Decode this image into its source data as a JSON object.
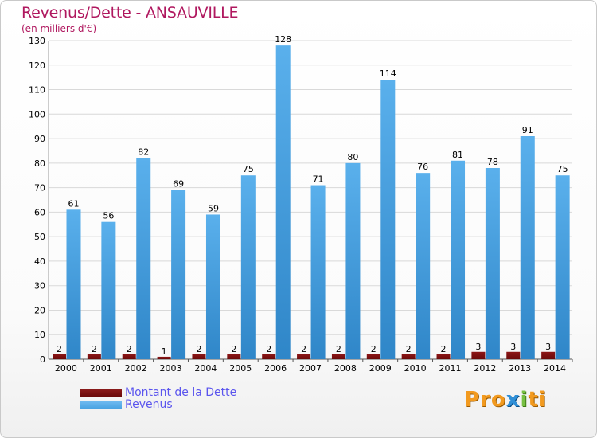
{
  "header": {
    "title": "Revenus/Dette - ANSAUVILLE",
    "subtitle": "(en milliers d'€)"
  },
  "logo": {
    "text": "Proxiti"
  },
  "colors": {
    "dette": "#6b0a0a",
    "revenus": "#4aa3e2",
    "grid": "#d9d9d9",
    "axis_text": "#000000",
    "title": "#b0185f",
    "legend_text": "#5b55ee"
  },
  "chart_data": {
    "type": "bar",
    "title": "Revenus/Dette - ANSAUVILLE",
    "subtitle": "(en milliers d'€)",
    "categories": [
      "2000",
      "2001",
      "2002",
      "2003",
      "2004",
      "2005",
      "2006",
      "2007",
      "2008",
      "2009",
      "2010",
      "2011",
      "2012",
      "2013",
      "2014"
    ],
    "series": [
      {
        "name": "Montant de la Dette",
        "values": [
          2,
          2,
          2,
          1,
          2,
          2,
          2,
          2,
          2,
          2,
          2,
          2,
          3,
          3,
          3
        ]
      },
      {
        "name": "Revenus",
        "values": [
          61,
          56,
          82,
          69,
          59,
          75,
          128,
          71,
          80,
          114,
          76,
          81,
          78,
          91,
          75
        ]
      }
    ],
    "ylim": [
      0,
      130
    ],
    "yticks": [
      0,
      10,
      20,
      30,
      40,
      50,
      60,
      70,
      80,
      90,
      100,
      110,
      120,
      130
    ],
    "grid": true,
    "legend_position": "bottom-left"
  }
}
